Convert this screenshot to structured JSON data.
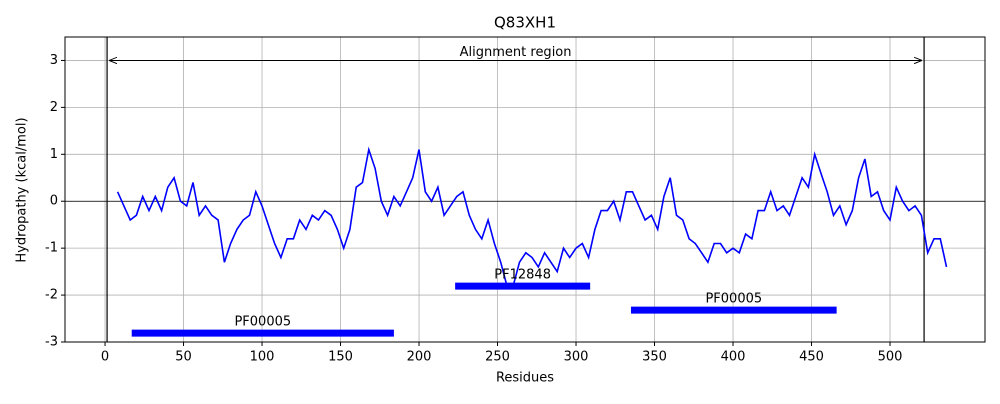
{
  "chart_data": {
    "type": "line",
    "title": "Q83XH1",
    "x_label": "Residues",
    "y_label": "Hydropathy (kcal/mol)",
    "x": [
      8,
      12,
      16,
      20,
      24,
      28,
      32,
      36,
      40,
      44,
      48,
      52,
      56,
      60,
      64,
      68,
      72,
      76,
      80,
      84,
      88,
      92,
      96,
      100,
      104,
      108,
      112,
      116,
      120,
      124,
      128,
      132,
      136,
      140,
      144,
      148,
      152,
      156,
      160,
      164,
      168,
      172,
      176,
      180,
      184,
      188,
      192,
      196,
      200,
      204,
      208,
      212,
      216,
      220,
      224,
      228,
      232,
      236,
      240,
      244,
      248,
      252,
      256,
      260,
      264,
      268,
      272,
      276,
      280,
      284,
      288,
      292,
      296,
      300,
      304,
      308,
      312,
      316,
      320,
      324,
      328,
      332,
      336,
      340,
      344,
      348,
      352,
      356,
      360,
      364,
      368,
      372,
      376,
      380,
      384,
      388,
      392,
      396,
      400,
      404,
      408,
      412,
      416,
      420,
      424,
      428,
      432,
      436,
      440,
      444,
      448,
      452,
      456,
      460,
      464,
      468,
      472,
      476,
      480,
      484,
      488,
      492,
      496,
      500,
      504,
      508,
      512,
      516,
      520,
      524,
      528,
      532,
      536
    ],
    "series": [
      {
        "name": "hydropathy",
        "color": "#0000ff",
        "values": [
          0.2,
          -0.1,
          -0.4,
          -0.3,
          0.1,
          -0.2,
          0.1,
          -0.2,
          0.3,
          0.5,
          0.0,
          -0.1,
          0.4,
          -0.3,
          -0.1,
          -0.3,
          -0.4,
          -1.3,
          -0.9,
          -0.6,
          -0.4,
          -0.3,
          0.2,
          -0.1,
          -0.5,
          -0.9,
          -1.2,
          -0.8,
          -0.8,
          -0.4,
          -0.6,
          -0.3,
          -0.4,
          -0.2,
          -0.3,
          -0.6,
          -1.0,
          -0.6,
          0.3,
          0.4,
          1.1,
          0.7,
          0.0,
          -0.3,
          0.1,
          -0.1,
          0.2,
          0.5,
          1.1,
          0.2,
          0.0,
          0.3,
          -0.3,
          -0.1,
          0.1,
          0.2,
          -0.3,
          -0.6,
          -0.8,
          -0.4,
          -0.9,
          -1.3,
          -1.8,
          -1.8,
          -1.3,
          -1.1,
          -1.2,
          -1.4,
          -1.1,
          -1.3,
          -1.5,
          -1.0,
          -1.2,
          -1.0,
          -0.9,
          -1.2,
          -0.6,
          -0.2,
          -0.2,
          0.0,
          -0.4,
          0.2,
          0.2,
          -0.1,
          -0.4,
          -0.3,
          -0.6,
          0.1,
          0.5,
          -0.3,
          -0.4,
          -0.8,
          -0.9,
          -1.1,
          -1.3,
          -0.9,
          -0.9,
          -1.1,
          -1.0,
          -1.1,
          -0.7,
          -0.8,
          -0.2,
          -0.2,
          0.2,
          -0.2,
          -0.1,
          -0.3,
          0.1,
          0.5,
          0.3,
          1.0,
          0.6,
          0.2,
          -0.3,
          -0.1,
          -0.5,
          -0.2,
          0.5,
          0.9,
          0.1,
          0.2,
          -0.2,
          -0.4,
          0.3,
          0.0,
          -0.2,
          -0.1,
          -0.3,
          -1.1,
          -0.8,
          -0.8,
          -1.4
        ]
      }
    ],
    "xlim": [
      -25.5,
      560.5
    ],
    "ylim": [
      -3,
      3.5
    ],
    "xticks": [
      0,
      50,
      100,
      150,
      200,
      250,
      300,
      350,
      400,
      450,
      500
    ],
    "yticks": [
      -3,
      -2,
      -1,
      0,
      1,
      2,
      3
    ],
    "grid": true,
    "zero_line": 0,
    "alignment_region": {
      "text": "Alignment region",
      "start": 1.3,
      "end": 521.7,
      "y": 3
    },
    "domains": [
      {
        "name": "PF00005",
        "start": 17,
        "end": 184,
        "y": -2.81,
        "color": "#0000ff"
      },
      {
        "name": "PF12848",
        "start": 223,
        "end": 309,
        "y": -1.81,
        "color": "#0000ff"
      },
      {
        "name": "PF00005",
        "start": 335,
        "end": 466,
        "y": -2.32,
        "color": "#0000ff"
      }
    ]
  }
}
